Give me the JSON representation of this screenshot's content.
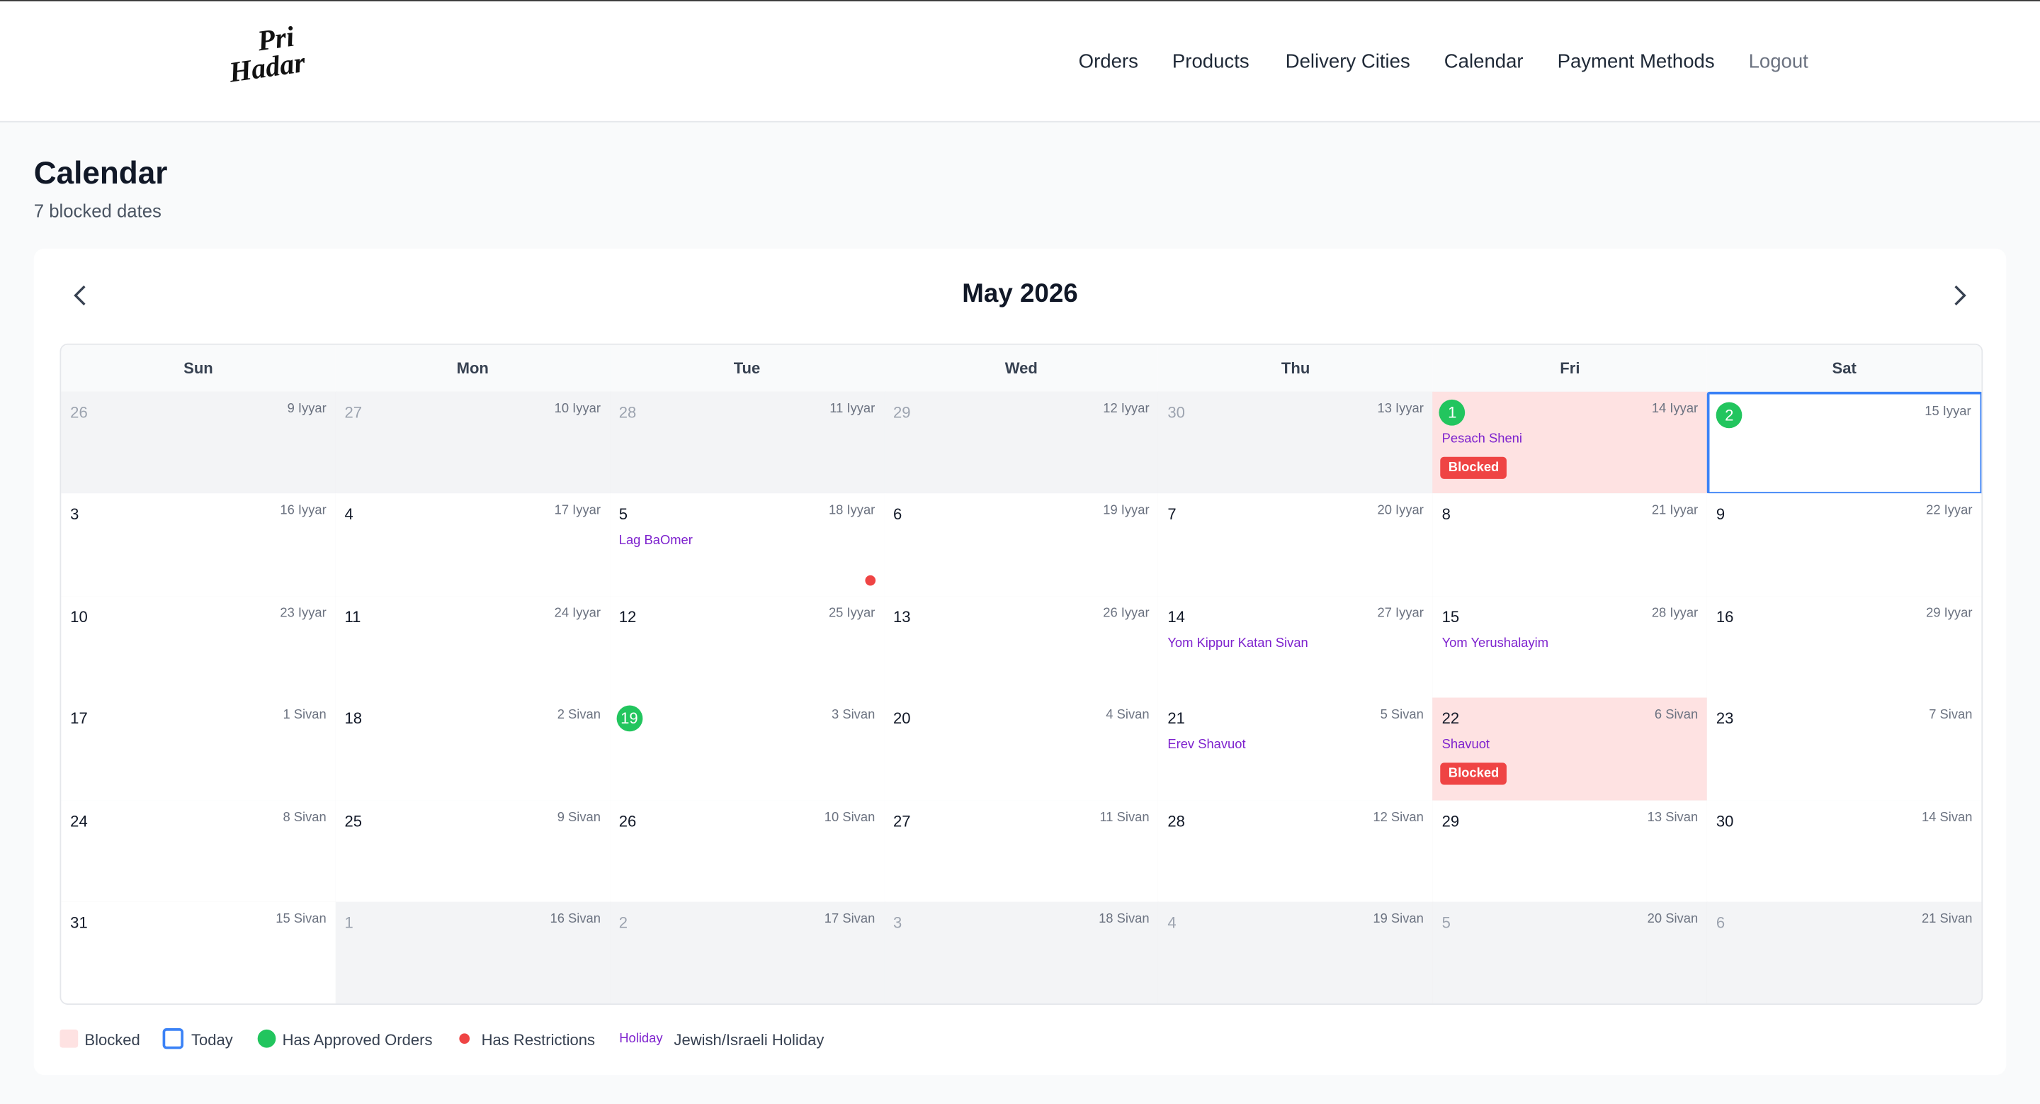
{
  "header": {
    "logo": [
      "Pri",
      "Hadar"
    ],
    "nav": [
      "Orders",
      "Products",
      "Delivery Cities",
      "Calendar",
      "Payment Methods",
      "Logout"
    ]
  },
  "page": {
    "title": "Calendar",
    "subtitle": "7 blocked dates"
  },
  "calendar": {
    "month": "May 2026",
    "weekdays": [
      "Sun",
      "Mon",
      "Tue",
      "Wed",
      "Thu",
      "Fri",
      "Sat"
    ],
    "weeks": [
      [
        {
          "day": "26",
          "hebrew": "9 Iyyar",
          "outside": true
        },
        {
          "day": "27",
          "hebrew": "10 Iyyar",
          "outside": true
        },
        {
          "day": "28",
          "hebrew": "11 Iyyar",
          "outside": true
        },
        {
          "day": "29",
          "hebrew": "12 Iyyar",
          "outside": true
        },
        {
          "day": "30",
          "hebrew": "13 Iyyar",
          "outside": true
        },
        {
          "day": "1",
          "hebrew": "14 Iyyar",
          "blocked": true,
          "approved": true,
          "holiday": "Pesach Sheni",
          "badge": "Blocked"
        },
        {
          "day": "2",
          "hebrew": "15 Iyyar",
          "today": true,
          "approved": true
        }
      ],
      [
        {
          "day": "3",
          "hebrew": "16 Iyyar"
        },
        {
          "day": "4",
          "hebrew": "17 Iyyar"
        },
        {
          "day": "5",
          "hebrew": "18 Iyyar",
          "holiday": "Lag BaOmer",
          "restriction": true
        },
        {
          "day": "6",
          "hebrew": "19 Iyyar"
        },
        {
          "day": "7",
          "hebrew": "20 Iyyar"
        },
        {
          "day": "8",
          "hebrew": "21 Iyyar"
        },
        {
          "day": "9",
          "hebrew": "22 Iyyar"
        }
      ],
      [
        {
          "day": "10",
          "hebrew": "23 Iyyar"
        },
        {
          "day": "11",
          "hebrew": "24 Iyyar"
        },
        {
          "day": "12",
          "hebrew": "25 Iyyar"
        },
        {
          "day": "13",
          "hebrew": "26 Iyyar"
        },
        {
          "day": "14",
          "hebrew": "27 Iyyar",
          "holiday": "Yom Kippur Katan Sivan"
        },
        {
          "day": "15",
          "hebrew": "28 Iyyar",
          "holiday": "Yom Yerushalayim"
        },
        {
          "day": "16",
          "hebrew": "29 Iyyar"
        }
      ],
      [
        {
          "day": "17",
          "hebrew": "1 Sivan"
        },
        {
          "day": "18",
          "hebrew": "2 Sivan"
        },
        {
          "day": "19",
          "hebrew": "3 Sivan",
          "approved": true
        },
        {
          "day": "20",
          "hebrew": "4 Sivan"
        },
        {
          "day": "21",
          "hebrew": "5 Sivan",
          "holiday": "Erev Shavuot"
        },
        {
          "day": "22",
          "hebrew": "6 Sivan",
          "blocked": true,
          "holiday": "Shavuot",
          "badge": "Blocked"
        },
        {
          "day": "23",
          "hebrew": "7 Sivan"
        }
      ],
      [
        {
          "day": "24",
          "hebrew": "8 Sivan"
        },
        {
          "day": "25",
          "hebrew": "9 Sivan"
        },
        {
          "day": "26",
          "hebrew": "10 Sivan"
        },
        {
          "day": "27",
          "hebrew": "11 Sivan"
        },
        {
          "day": "28",
          "hebrew": "12 Sivan"
        },
        {
          "day": "29",
          "hebrew": "13 Sivan"
        },
        {
          "day": "30",
          "hebrew": "14 Sivan"
        }
      ],
      [
        {
          "day": "31",
          "hebrew": "15 Sivan"
        },
        {
          "day": "1",
          "hebrew": "16 Sivan",
          "outside": true
        },
        {
          "day": "2",
          "hebrew": "17 Sivan",
          "outside": true
        },
        {
          "day": "3",
          "hebrew": "18 Sivan",
          "outside": true
        },
        {
          "day": "4",
          "hebrew": "19 Sivan",
          "outside": true
        },
        {
          "day": "5",
          "hebrew": "20 Sivan",
          "outside": true
        },
        {
          "day": "6",
          "hebrew": "21 Sivan",
          "outside": true
        }
      ]
    ]
  },
  "legend": {
    "blocked": "Blocked",
    "today": "Today",
    "approved": "Has Approved Orders",
    "restriction": "Has Restrictions",
    "holiday_sample": "Holiday",
    "holiday": "Jewish/Israeli Holiday"
  }
}
